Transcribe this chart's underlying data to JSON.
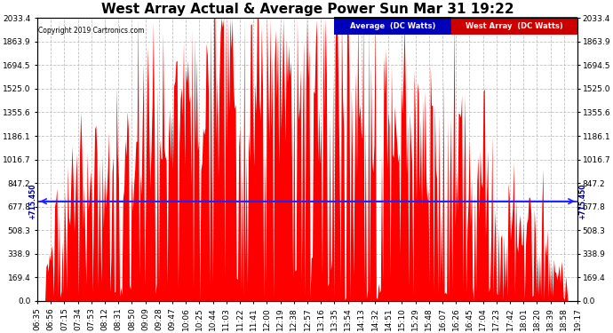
{
  "title": "West Array Actual & Average Power Sun Mar 31 19:22",
  "copyright": "Copyright 2019 Cartronics.com",
  "yticks": [
    0.0,
    169.4,
    338.9,
    508.3,
    677.8,
    847.2,
    1016.7,
    1186.1,
    1355.6,
    1525.0,
    1694.5,
    1863.9,
    2033.4
  ],
  "yref": 715.45,
  "ymax": 2033.4,
  "legend_average_label": "Average  (DC Watts)",
  "legend_west_label": "West Array  (DC Watts)",
  "legend_average_bg": "#0000bb",
  "legend_west_bg": "#cc0000",
  "fill_color": "#ff0000",
  "avg_line_color": "#2222ff",
  "background_color": "#ffffff",
  "grid_color": "#bbbbbb",
  "title_fontsize": 11,
  "tick_fontsize": 6.5,
  "xtick_labels": [
    "06:35",
    "06:56",
    "07:15",
    "07:34",
    "07:53",
    "08:12",
    "08:31",
    "08:50",
    "09:09",
    "09:28",
    "09:47",
    "10:06",
    "10:25",
    "10:44",
    "11:03",
    "11:22",
    "11:41",
    "12:00",
    "12:19",
    "12:38",
    "12:57",
    "13:16",
    "13:35",
    "13:54",
    "14:13",
    "14:32",
    "14:51",
    "15:10",
    "15:29",
    "15:48",
    "16:07",
    "16:26",
    "16:45",
    "17:04",
    "17:23",
    "17:42",
    "18:01",
    "18:20",
    "18:39",
    "18:58",
    "19:17"
  ]
}
